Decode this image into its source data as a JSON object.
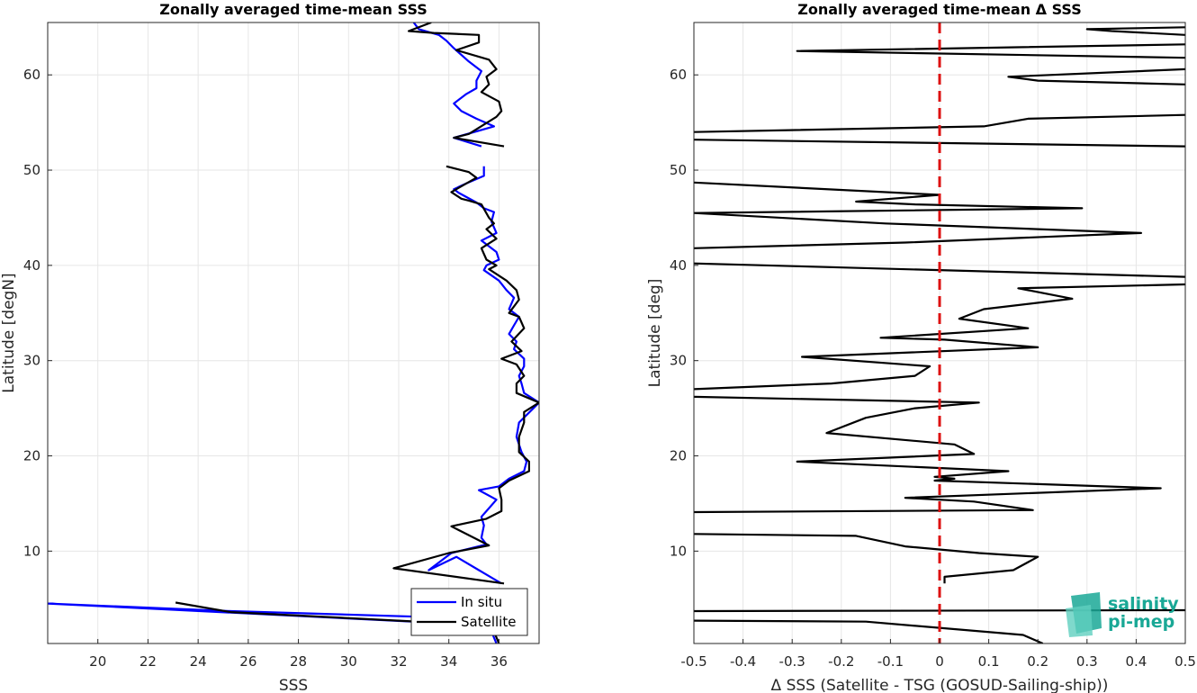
{
  "chart_data": [
    {
      "type": "line",
      "title": "Zonally averaged time-mean SSS",
      "xlabel": "SSS",
      "ylabel": "Latitude [degN]",
      "xlim": [
        18,
        37.6
      ],
      "ylim": [
        0.3,
        65.5
      ],
      "xticks": [
        20,
        22,
        24,
        26,
        28,
        30,
        32,
        34,
        36
      ],
      "yticks": [
        10,
        20,
        30,
        40,
        50,
        60
      ],
      "grid": true,
      "legend_position": "bottom-right",
      "series": [
        {
          "name": "In situ",
          "color": "#0000ff",
          "segments": [
            [
              [
                35.9,
                0.3
              ],
              [
                35.6,
                2.2
              ],
              [
                18,
                4.5
              ],
              [
                25.3,
                3.7
              ],
              [
                35.5,
                2.9
              ]
            ],
            [
              [
                36.1,
                6.6
              ],
              [
                35.2,
                8.0
              ],
              [
                34.3,
                9.4
              ],
              [
                33.2,
                8.0
              ],
              [
                34.1,
                9.8
              ],
              [
                35.5,
                10.7
              ],
              [
                35.3,
                11.4
              ],
              [
                35.4,
                12.7
              ],
              [
                35.3,
                13.6
              ],
              [
                35.5,
                14.2
              ],
              [
                35.9,
                15.4
              ],
              [
                35.2,
                16.4
              ],
              [
                36.0,
                16.8
              ],
              [
                36.4,
                17.6
              ],
              [
                37.0,
                18.4
              ],
              [
                37.1,
                19.4
              ],
              [
                36.9,
                20.4
              ],
              [
                36.7,
                22.0
              ],
              [
                36.8,
                23.5
              ],
              [
                37.3,
                24.8
              ],
              [
                37.6,
                25.6
              ],
              [
                37.0,
                26.6
              ],
              [
                36.9,
                27.6
              ],
              [
                36.8,
                28.4
              ],
              [
                37.0,
                29.4
              ],
              [
                37.0,
                30.2
              ],
              [
                36.6,
                31.2
              ],
              [
                36.7,
                32.0
              ],
              [
                36.4,
                32.8
              ],
              [
                36.6,
                33.7
              ],
              [
                36.8,
                34.6
              ],
              [
                36.4,
                35.4
              ],
              [
                36.6,
                36.6
              ],
              [
                36.3,
                37.4
              ],
              [
                36.0,
                38.4
              ],
              [
                35.4,
                39.5
              ],
              [
                35.5,
                40.0
              ],
              [
                36.0,
                40.6
              ],
              [
                35.9,
                41.4
              ],
              [
                35.3,
                42.6
              ],
              [
                35.9,
                43.4
              ],
              [
                35.7,
                44.6
              ],
              [
                35.8,
                45.6
              ],
              [
                35.4,
                46.0
              ],
              [
                35.1,
                46.6
              ],
              [
                34.4,
                47.6
              ],
              [
                34.2,
                48.0
              ],
              [
                34.7,
                48.6
              ],
              [
                35.4,
                49.4
              ],
              [
                35.4,
                50.4
              ]
            ],
            [
              [
                35.3,
                52.5
              ],
              [
                34.2,
                53.4
              ],
              [
                35.8,
                54.6
              ],
              [
                35.1,
                55.4
              ],
              [
                34.5,
                56.2
              ],
              [
                34.2,
                57.0
              ],
              [
                34.7,
                58.0
              ],
              [
                35.1,
                58.6
              ],
              [
                35.1,
                59.4
              ],
              [
                35.3,
                60.4
              ],
              [
                34.8,
                61.4
              ],
              [
                34.2,
                62.8
              ],
              [
                33.9,
                63.6
              ],
              [
                33.6,
                64.2
              ],
              [
                32.8,
                64.8
              ],
              [
                32.6,
                65.5
              ]
            ]
          ]
        },
        {
          "name": "Satellite",
          "color": "#000000",
          "segments": [
            [
              [
                36.0,
                0.3
              ],
              [
                35.7,
                2.2
              ],
              [
                25.3,
                3.6
              ],
              [
                23.1,
                4.6
              ]
            ],
            [
              [
                36.2,
                6.6
              ],
              [
                31.8,
                8.2
              ],
              [
                34.0,
                9.8
              ],
              [
                35.6,
                10.6
              ],
              [
                34.1,
                12.6
              ],
              [
                35.5,
                13.4
              ],
              [
                36.1,
                14.2
              ],
              [
                36.1,
                15.4
              ],
              [
                36.0,
                16.6
              ],
              [
                36.4,
                17.4
              ],
              [
                37.2,
                18.4
              ],
              [
                37.2,
                19.4
              ],
              [
                36.8,
                20.4
              ],
              [
                36.8,
                22.0
              ],
              [
                37.0,
                23.5
              ],
              [
                37.0,
                24.6
              ],
              [
                37.6,
                25.6
              ],
              [
                36.7,
                26.6
              ],
              [
                36.7,
                27.6
              ],
              [
                37.0,
                28.4
              ],
              [
                36.7,
                29.6
              ],
              [
                36.1,
                30.2
              ],
              [
                36.9,
                31.0
              ],
              [
                36.5,
                32.0
              ],
              [
                37.0,
                33.4
              ],
              [
                36.8,
                34.6
              ],
              [
                36.4,
                35.0
              ],
              [
                36.8,
                36.4
              ],
              [
                36.7,
                37.4
              ],
              [
                36.3,
                38.4
              ],
              [
                35.6,
                39.6
              ],
              [
                35.9,
                40.0
              ],
              [
                35.5,
                40.6
              ],
              [
                35.3,
                41.8
              ],
              [
                35.9,
                42.8
              ],
              [
                35.5,
                43.8
              ],
              [
                35.8,
                44.4
              ],
              [
                35.6,
                45.0
              ],
              [
                35.3,
                46.4
              ],
              [
                34.8,
                46.8
              ],
              [
                34.5,
                47.0
              ],
              [
                34.1,
                47.7
              ],
              [
                34.7,
                48.6
              ],
              [
                35.1,
                49.2
              ],
              [
                34.8,
                49.8
              ],
              [
                33.9,
                50.4
              ]
            ],
            [
              [
                36.2,
                52.5
              ],
              [
                34.2,
                53.4
              ],
              [
                34.8,
                53.8
              ],
              [
                35.9,
                55.6
              ],
              [
                36.1,
                56.2
              ],
              [
                36.0,
                57.2
              ],
              [
                35.3,
                58.2
              ],
              [
                35.6,
                59.0
              ],
              [
                35.5,
                59.8
              ],
              [
                35.9,
                60.6
              ],
              [
                35.6,
                61.6
              ],
              [
                34.3,
                62.6
              ],
              [
                35.2,
                63.4
              ],
              [
                35.2,
                64.2
              ],
              [
                33.4,
                64.4
              ],
              [
                32.4,
                64.6
              ],
              [
                33.3,
                65.5
              ]
            ]
          ]
        }
      ]
    },
    {
      "type": "line",
      "title": "Zonally averaged time-mean Δ SSS",
      "xlabel": "Δ SSS (Satellite - TSG (GOSUD-Sailing-ship))",
      "ylabel": "Latitude [deg]",
      "xlim": [
        -0.5,
        0.5
      ],
      "ylim": [
        0.3,
        65.5
      ],
      "xticks": [
        -0.5,
        -0.4,
        -0.3,
        -0.2,
        -0.1,
        0,
        0.1,
        0.2,
        0.3,
        0.4,
        0.5
      ],
      "xticklabels": [
        "-0.5",
        "-0.4",
        "-0.3",
        "-0.2",
        "-0.1",
        "0",
        "0.1",
        "0.2",
        "0.3",
        "0.4",
        "0.5"
      ],
      "yticks": [
        10,
        20,
        30,
        40,
        50,
        60
      ],
      "grid": true,
      "reference_line": {
        "x": 0,
        "color": "#dd1111",
        "style": "dashed"
      },
      "series": [
        {
          "name": "",
          "color": "#000000",
          "segments": [
            [
              [
                0.21,
                0.3
              ],
              [
                0.17,
                1.2
              ],
              [
                -0.15,
                2.6
              ],
              [
                -0.5,
                2.7
              ]
            ],
            [
              [
                -0.5,
                3.7
              ],
              [
                0.5,
                3.8
              ]
            ],
            [
              [
                0.01,
                6.6
              ],
              [
                0.01,
                7.3
              ],
              [
                0.15,
                8.0
              ],
              [
                0.2,
                9.4
              ],
              [
                0.08,
                9.8
              ],
              [
                -0.07,
                10.5
              ],
              [
                -0.17,
                11.6
              ],
              [
                -0.5,
                11.8
              ]
            ],
            [
              [
                -0.5,
                14.1
              ],
              [
                0.19,
                14.3
              ],
              [
                0.07,
                15.2
              ],
              [
                -0.07,
                15.6
              ],
              [
                0.45,
                16.6
              ],
              [
                -0.01,
                17.4
              ],
              [
                0.03,
                17.6
              ],
              [
                -0.01,
                17.8
              ],
              [
                0.14,
                18.4
              ],
              [
                -0.29,
                19.4
              ],
              [
                0.07,
                20.2
              ],
              [
                0.03,
                21.2
              ],
              [
                -0.23,
                22.4
              ],
              [
                -0.15,
                24.0
              ],
              [
                -0.05,
                25.0
              ],
              [
                0.08,
                25.6
              ],
              [
                -0.5,
                26.2
              ]
            ],
            [
              [
                -0.5,
                27.0
              ],
              [
                -0.22,
                27.6
              ],
              [
                -0.05,
                28.4
              ],
              [
                -0.02,
                29.4
              ],
              [
                -0.28,
                30.4
              ],
              [
                0.2,
                31.4
              ],
              [
                0.01,
                32.2
              ],
              [
                -0.12,
                32.4
              ],
              [
                0.18,
                33.4
              ],
              [
                0.04,
                34.4
              ],
              [
                0.09,
                35.4
              ],
              [
                0.27,
                36.5
              ],
              [
                0.16,
                37.6
              ],
              [
                0.5,
                38.0
              ]
            ],
            [
              [
                0.5,
                38.8
              ],
              [
                -0.5,
                40.2
              ]
            ],
            [
              [
                -0.5,
                41.8
              ],
              [
                -0.07,
                42.4
              ],
              [
                0.41,
                43.4
              ],
              [
                -0.11,
                44.4
              ],
              [
                -0.5,
                45.5
              ],
              [
                0.29,
                46.0
              ],
              [
                -0.05,
                46.4
              ],
              [
                -0.17,
                46.7
              ],
              [
                0.0,
                47.4
              ],
              [
                -0.5,
                48.7
              ]
            ],
            [
              [
                0.5,
                52.5
              ],
              [
                -0.5,
                53.2
              ]
            ],
            [
              [
                -0.5,
                54.0
              ],
              [
                0.09,
                54.6
              ],
              [
                0.18,
                55.4
              ],
              [
                0.5,
                55.8
              ]
            ],
            [
              [
                0.5,
                59.0
              ],
              [
                0.2,
                59.4
              ],
              [
                0.14,
                59.8
              ],
              [
                0.5,
                60.6
              ]
            ],
            [
              [
                0.5,
                61.8
              ],
              [
                -0.29,
                62.5
              ],
              [
                0.5,
                63.2
              ]
            ],
            [
              [
                0.5,
                64.2
              ],
              [
                0.35,
                64.6
              ],
              [
                0.3,
                64.8
              ],
              [
                0.5,
                65.0
              ]
            ]
          ]
        }
      ]
    }
  ],
  "legend": {
    "insitu": "In situ",
    "satellite": "Satellite"
  },
  "logo": {
    "line1": "salinity",
    "line2": "pi-mep"
  }
}
